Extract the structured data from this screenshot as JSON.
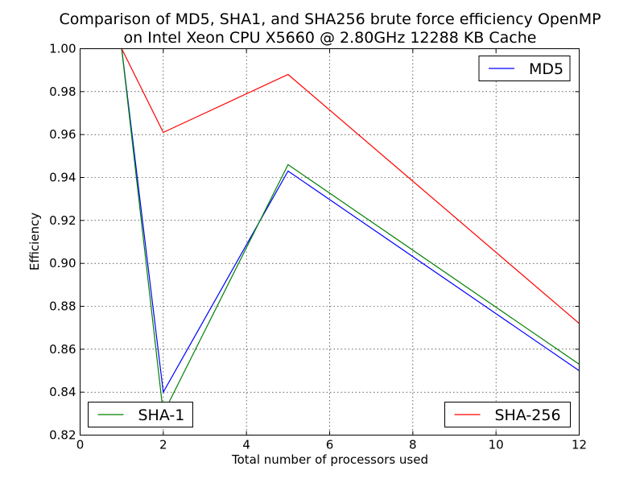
{
  "chart_data": {
    "type": "line",
    "title": "Comparison of MD5, SHA1, and SHA256 brute force efficiency OpenMP",
    "subtitle": "on Intel Xeon CPU X5660 @ 2.80GHz 12288 KB Cache",
    "xlabel": "Total number of processors used",
    "ylabel": "Efficiency",
    "xlim": [
      0,
      12
    ],
    "ylim": [
      0.82,
      1.0
    ],
    "xticks": [
      "0",
      "2",
      "4",
      "6",
      "8",
      "10",
      "12"
    ],
    "yticks": [
      "0.82",
      "0.84",
      "0.86",
      "0.88",
      "0.90",
      "0.92",
      "0.94",
      "0.96",
      "0.98",
      "1.00"
    ],
    "grid": true,
    "series": [
      {
        "name": "MD5",
        "color": "#0000ff",
        "legend_position": "top-right",
        "points": [
          [
            1,
            1.0
          ],
          [
            2,
            0.84
          ],
          [
            5,
            0.943
          ],
          [
            12,
            0.85
          ]
        ]
      },
      {
        "name": "SHA-1",
        "color": "#008000",
        "legend_position": "bottom-left",
        "points": [
          [
            1,
            1.0
          ],
          [
            2,
            0.83
          ],
          [
            5,
            0.946
          ],
          [
            12,
            0.853
          ]
        ]
      },
      {
        "name": "SHA-256",
        "color": "#ff0000",
        "legend_position": "bottom-right",
        "points": [
          [
            1,
            1.0
          ],
          [
            2,
            0.961
          ],
          [
            5,
            0.988
          ],
          [
            12,
            0.872
          ]
        ]
      }
    ]
  }
}
